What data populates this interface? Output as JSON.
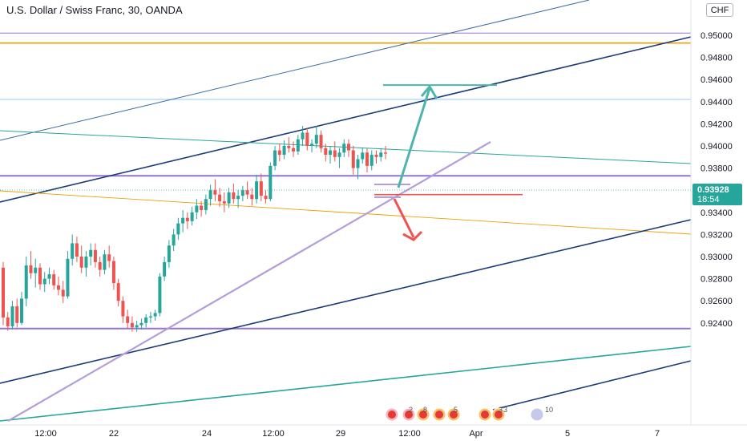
{
  "title": "U.S. Dollar / Swiss Franc, 30, OANDA",
  "currency_badge": "CHF",
  "chart_data": {
    "type": "candlestick",
    "symbol": "USDCHF",
    "interval": "30",
    "source": "OANDA",
    "currency": "CHF",
    "last_price": "0.93928",
    "countdown": "18:54",
    "y_ticks": [
      "0.95000",
      "0.94800",
      "0.94600",
      "0.94400",
      "0.94200",
      "0.94000",
      "0.93800",
      "0.93600",
      "0.93400",
      "0.93200",
      "0.93000",
      "0.92800",
      "0.92600",
      "0.92400"
    ],
    "y_tick_values": [
      0.95,
      0.948,
      0.946,
      0.944,
      0.942,
      0.94,
      0.938,
      0.936,
      0.934,
      0.932,
      0.93,
      0.928,
      0.926,
      0.924
    ],
    "y_range": [
      0.9232,
      0.9519
    ],
    "x_ticks": [
      "12:00",
      "22",
      "24",
      "12:00",
      "29",
      "12:00",
      "Apr",
      "5",
      "7"
    ],
    "ohlc": [
      [
        0.929,
        0.9295,
        0.9238,
        0.9245
      ],
      [
        0.9245,
        0.925,
        0.9233,
        0.9237
      ],
      [
        0.9237,
        0.926,
        0.9234,
        0.9255
      ],
      [
        0.9255,
        0.9262,
        0.9236,
        0.924
      ],
      [
        0.924,
        0.9268,
        0.9238,
        0.9262
      ],
      [
        0.9262,
        0.93,
        0.9255,
        0.9292
      ],
      [
        0.9292,
        0.9305,
        0.928,
        0.9285
      ],
      [
        0.9285,
        0.9298,
        0.9272,
        0.929
      ],
      [
        0.929,
        0.9294,
        0.927,
        0.9275
      ],
      [
        0.9275,
        0.9286,
        0.9268,
        0.928
      ],
      [
        0.928,
        0.929,
        0.9275,
        0.9284
      ],
      [
        0.9284,
        0.9288,
        0.927,
        0.9274
      ],
      [
        0.9274,
        0.9282,
        0.9265,
        0.927
      ],
      [
        0.927,
        0.9278,
        0.9258,
        0.9264
      ],
      [
        0.9264,
        0.9305,
        0.9262,
        0.9298
      ],
      [
        0.9298,
        0.932,
        0.9292,
        0.9312
      ],
      [
        0.9312,
        0.9318,
        0.9295,
        0.93
      ],
      [
        0.93,
        0.931,
        0.9285,
        0.929
      ],
      [
        0.929,
        0.9305,
        0.9282,
        0.93
      ],
      [
        0.93,
        0.9312,
        0.9292,
        0.9306
      ],
      [
        0.9306,
        0.9312,
        0.929,
        0.9295
      ],
      [
        0.9295,
        0.93,
        0.9282,
        0.9288
      ],
      [
        0.9288,
        0.9306,
        0.9284,
        0.9302
      ],
      [
        0.9302,
        0.931,
        0.929,
        0.9296
      ],
      [
        0.9296,
        0.93,
        0.927,
        0.9276
      ],
      [
        0.9276,
        0.928,
        0.9255,
        0.926
      ],
      [
        0.926,
        0.9264,
        0.924,
        0.9246
      ],
      [
        0.9246,
        0.9252,
        0.9235,
        0.924
      ],
      [
        0.924,
        0.9246,
        0.9232,
        0.9236
      ],
      [
        0.9236,
        0.9242,
        0.9232,
        0.9238
      ],
      [
        0.9238,
        0.9244,
        0.9234,
        0.924
      ],
      [
        0.924,
        0.9248,
        0.9236,
        0.9245
      ],
      [
        0.9245,
        0.925,
        0.924,
        0.9246
      ],
      [
        0.9246,
        0.9252,
        0.9242,
        0.9249
      ],
      [
        0.9249,
        0.9285,
        0.9246,
        0.9282
      ],
      [
        0.9282,
        0.93,
        0.9278,
        0.9295
      ],
      [
        0.9295,
        0.9315,
        0.929,
        0.931
      ],
      [
        0.931,
        0.9325,
        0.9305,
        0.932
      ],
      [
        0.932,
        0.9335,
        0.9315,
        0.933
      ],
      [
        0.933,
        0.9342,
        0.9322,
        0.9335
      ],
      [
        0.9335,
        0.934,
        0.9325,
        0.9332
      ],
      [
        0.9332,
        0.9345,
        0.9328,
        0.934
      ],
      [
        0.934,
        0.9352,
        0.9334,
        0.9346
      ],
      [
        0.9346,
        0.935,
        0.9336,
        0.9342
      ],
      [
        0.9342,
        0.9356,
        0.9338,
        0.9352
      ],
      [
        0.9352,
        0.9365,
        0.9346,
        0.936
      ],
      [
        0.936,
        0.937,
        0.935,
        0.9356
      ],
      [
        0.9356,
        0.9362,
        0.9345,
        0.935
      ],
      [
        0.935,
        0.9358,
        0.934,
        0.9348
      ],
      [
        0.9348,
        0.9362,
        0.9344,
        0.9358
      ],
      [
        0.9358,
        0.9366,
        0.9348,
        0.9352
      ],
      [
        0.9352,
        0.936,
        0.9344,
        0.9355
      ],
      [
        0.9355,
        0.9364,
        0.935,
        0.936
      ],
      [
        0.936,
        0.9368,
        0.9352,
        0.9356
      ],
      [
        0.9356,
        0.9362,
        0.9346,
        0.9352
      ],
      [
        0.9352,
        0.9374,
        0.9348,
        0.9368
      ],
      [
        0.9368,
        0.9375,
        0.935,
        0.9355
      ],
      [
        0.9355,
        0.936,
        0.9348,
        0.9352
      ],
      [
        0.9352,
        0.9385,
        0.935,
        0.9382
      ],
      [
        0.9382,
        0.94,
        0.9378,
        0.9396
      ],
      [
        0.9396,
        0.9402,
        0.9386,
        0.9392
      ],
      [
        0.9392,
        0.9405,
        0.9388,
        0.94
      ],
      [
        0.94,
        0.9408,
        0.9394,
        0.9398
      ],
      [
        0.9398,
        0.9404,
        0.939,
        0.9395
      ],
      [
        0.9395,
        0.941,
        0.9392,
        0.9406
      ],
      [
        0.9406,
        0.9418,
        0.94,
        0.9412
      ],
      [
        0.9412,
        0.9416,
        0.9396,
        0.94
      ],
      [
        0.94,
        0.9406,
        0.9394,
        0.9402
      ],
      [
        0.9402,
        0.9418,
        0.9398,
        0.941
      ],
      [
        0.941,
        0.9414,
        0.9394,
        0.9398
      ],
      [
        0.9398,
        0.9402,
        0.9386,
        0.9392
      ],
      [
        0.9392,
        0.94,
        0.9384,
        0.9396
      ],
      [
        0.9396,
        0.9404,
        0.9386,
        0.939
      ],
      [
        0.939,
        0.9398,
        0.938,
        0.9394
      ],
      [
        0.9394,
        0.9406,
        0.939,
        0.9402
      ],
      [
        0.9402,
        0.9406,
        0.939,
        0.9396
      ],
      [
        0.9396,
        0.94,
        0.9374,
        0.938
      ],
      [
        0.938,
        0.9392,
        0.937,
        0.9388
      ],
      [
        0.9388,
        0.9398,
        0.9384,
        0.9394
      ],
      [
        0.9394,
        0.9398,
        0.9376,
        0.9382
      ],
      [
        0.9382,
        0.9396,
        0.9378,
        0.9392
      ],
      [
        0.9392,
        0.9396,
        0.9384,
        0.939
      ],
      [
        0.939,
        0.9398,
        0.9386,
        0.9394
      ],
      [
        0.9394,
        0.94,
        0.9388,
        0.9393
      ]
    ],
    "drawings": {
      "target_up": "0.94550",
      "target_down": "0.93560",
      "support_level": "0.93730",
      "resistance_level": "0.94930",
      "upper_level": "0.95020",
      "level_light_blue": "0.94420",
      "level_bottom": "0.92350"
    },
    "event_markers": [
      "2",
      "8",
      "5",
      "3",
      "3",
      "10"
    ],
    "colors": {
      "up_candle": "#26a69a",
      "down_candle": "#ef5350",
      "navy_trend": "#1a3a7a",
      "teal_trend": "#26a69a",
      "purple": "#9575cd",
      "orange": "#f0a000",
      "light_blue": "#90caf9",
      "green_arrow": "#4db6ac",
      "red_arrow": "#ef5350",
      "price_badge": "#26a69a"
    }
  }
}
